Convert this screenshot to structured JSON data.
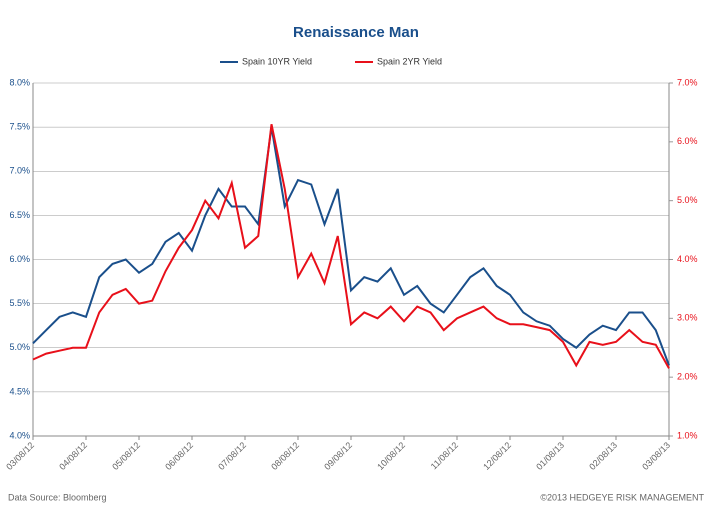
{
  "chart_data": {
    "type": "line",
    "title": "Renaissance Man",
    "categories": [
      "03/08/12",
      null,
      null,
      null,
      "04/08/12",
      null,
      null,
      null,
      "05/08/12",
      null,
      null,
      null,
      "06/08/12",
      null,
      null,
      null,
      "07/08/12",
      null,
      null,
      null,
      "08/08/12",
      null,
      null,
      null,
      "09/08/12",
      null,
      null,
      null,
      "10/08/12",
      null,
      null,
      null,
      "11/08/12",
      null,
      null,
      null,
      "12/08/12",
      null,
      null,
      null,
      "01/08/13",
      null,
      null,
      null,
      "02/08/13",
      null,
      null,
      null,
      "03/08/13"
    ],
    "series": [
      {
        "name": "Spain 10YR Yield",
        "color": "#1a4f8b",
        "axis": "y",
        "values": [
          5.05,
          5.2,
          5.35,
          5.4,
          5.35,
          5.8,
          5.95,
          6.0,
          5.85,
          5.95,
          6.2,
          6.3,
          6.1,
          6.5,
          6.8,
          6.6,
          6.6,
          6.4,
          7.5,
          6.6,
          6.9,
          6.85,
          6.4,
          6.8,
          5.65,
          5.8,
          5.75,
          5.9,
          5.6,
          5.7,
          5.5,
          5.4,
          5.6,
          5.8,
          5.9,
          5.7,
          5.6,
          5.4,
          5.3,
          5.25,
          5.1,
          5.0,
          5.15,
          5.25,
          5.2,
          5.4,
          5.4,
          5.2,
          4.8
        ]
      },
      {
        "name": "Spain 2YR Yield",
        "color": "#e8101a",
        "axis": "y2",
        "values": [
          2.3,
          2.4,
          2.45,
          2.5,
          2.5,
          3.1,
          3.4,
          3.5,
          3.25,
          3.3,
          3.8,
          4.2,
          4.5,
          5.0,
          4.7,
          5.3,
          4.2,
          4.4,
          6.3,
          5.2,
          3.7,
          4.1,
          3.6,
          4.4,
          2.9,
          3.1,
          3.0,
          3.2,
          2.95,
          3.2,
          3.1,
          2.8,
          3.0,
          3.1,
          3.2,
          3.0,
          2.9,
          2.9,
          2.85,
          2.8,
          2.6,
          2.2,
          2.6,
          2.55,
          2.6,
          2.8,
          2.6,
          2.55,
          2.15
        ]
      }
    ],
    "ylim": [
      4.0,
      8.0
    ],
    "yticks": [
      {
        "value": 4.0,
        "label": "4.0%"
      },
      {
        "value": 4.5,
        "label": "4.5%"
      },
      {
        "value": 5.0,
        "label": "5.0%"
      },
      {
        "value": 5.5,
        "label": "5.5%"
      },
      {
        "value": 6.0,
        "label": "6.0%"
      },
      {
        "value": 6.5,
        "label": "6.5%"
      },
      {
        "value": 7.0,
        "label": "7.0%"
      },
      {
        "value": 7.5,
        "label": "7.5%"
      },
      {
        "value": 8.0,
        "label": "8.0%"
      }
    ],
    "y2lim": [
      1.0,
      7.0
    ],
    "y2ticks": [
      {
        "value": 1.0,
        "label": "1.0%"
      },
      {
        "value": 2.0,
        "label": "2.0%"
      },
      {
        "value": 3.0,
        "label": "3.0%"
      },
      {
        "value": 4.0,
        "label": "4.0%"
      },
      {
        "value": 5.0,
        "label": "5.0%"
      },
      {
        "value": 6.0,
        "label": "6.0%"
      },
      {
        "value": 7.0,
        "label": "7.0%"
      }
    ],
    "grid": true,
    "legend": "top",
    "source": "Data Source: Bloomberg",
    "copyright": "©2013 HEDGEYE RISK MANAGEMENT"
  }
}
